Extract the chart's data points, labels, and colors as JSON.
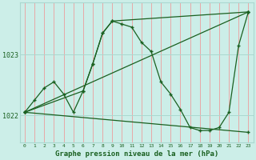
{
  "title": "Graphe pression niveau de la mer (hPa)",
  "bg_color": "#cceee8",
  "grid_color_v": "#e8a8a8",
  "grid_color_h": "#aad8d0",
  "line_color": "#1a6020",
  "ytick_labels": [
    "1022",
    "1023"
  ],
  "yticks": [
    1022.0,
    1023.0
  ],
  "ylim": [
    1021.55,
    1023.85
  ],
  "xlim": [
    -0.5,
    23.5
  ],
  "xticks": [
    0,
    1,
    2,
    3,
    4,
    5,
    6,
    7,
    8,
    9,
    10,
    11,
    12,
    13,
    14,
    15,
    16,
    17,
    18,
    19,
    20,
    21,
    22,
    23
  ],
  "series": [
    {
      "x": [
        0,
        1,
        2,
        3,
        4,
        5,
        6,
        7,
        8,
        9,
        10,
        11,
        12,
        13,
        14,
        15,
        16,
        17,
        18,
        19,
        20,
        21,
        22,
        23
      ],
      "y": [
        1022.05,
        1022.25,
        1022.45,
        1022.55,
        1022.35,
        1022.05,
        1022.4,
        1022.85,
        1023.35,
        1023.55,
        1023.5,
        1023.45,
        1023.2,
        1023.05,
        1022.55,
        1022.35,
        1022.1,
        1021.8,
        1021.75,
        1021.75,
        1021.8,
        1022.05,
        1023.15,
        1023.7
      ]
    },
    {
      "x": [
        0,
        6,
        7,
        8,
        9,
        23
      ],
      "y": [
        1022.05,
        1022.4,
        1022.85,
        1023.35,
        1023.55,
        1023.7
      ]
    },
    {
      "x": [
        0,
        23
      ],
      "y": [
        1022.05,
        1023.7
      ]
    },
    {
      "x": [
        0,
        23
      ],
      "y": [
        1022.05,
        1021.72
      ]
    }
  ]
}
